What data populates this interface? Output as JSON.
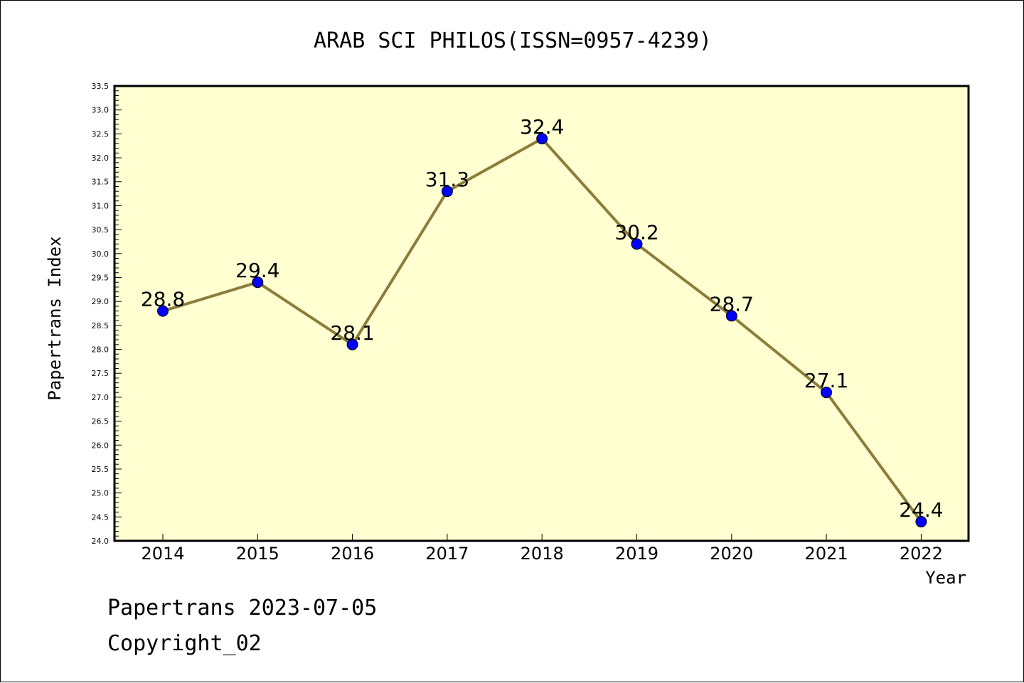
{
  "chart_data": {
    "type": "line",
    "title": "ARAB SCI PHILOS(ISSN=0957-4239)",
    "xlabel": "Year",
    "ylabel": "Papertrans Index",
    "categories": [
      "2014",
      "2015",
      "2016",
      "2017",
      "2018",
      "2019",
      "2020",
      "2021",
      "2022"
    ],
    "series": [
      {
        "values": [
          28.8,
          29.4,
          28.1,
          31.3,
          32.4,
          30.2,
          28.7,
          27.1,
          24.4
        ]
      }
    ],
    "data_labels": [
      "28.8",
      "29.4",
      "28.1",
      "31.3",
      "32.4",
      "30.2",
      "28.7",
      "27.1",
      "24.4"
    ],
    "ylim": [
      24.0,
      33.5
    ],
    "yticks": [
      "24.0",
      "24.5",
      "25.0",
      "25.5",
      "26.0",
      "26.5",
      "27.0",
      "27.5",
      "28.0",
      "28.5",
      "29.0",
      "29.5",
      "30.0",
      "30.5",
      "31.0",
      "31.5",
      "32.0",
      "32.5",
      "33.0",
      "33.5"
    ],
    "grid": false,
    "colors": {
      "plot_background": "#ffffd2",
      "line": "#8b7d3a",
      "marker": "#0000ff"
    }
  },
  "footer": {
    "line1": "Papertrans 2023-07-05",
    "line2": "Copyright_02"
  }
}
